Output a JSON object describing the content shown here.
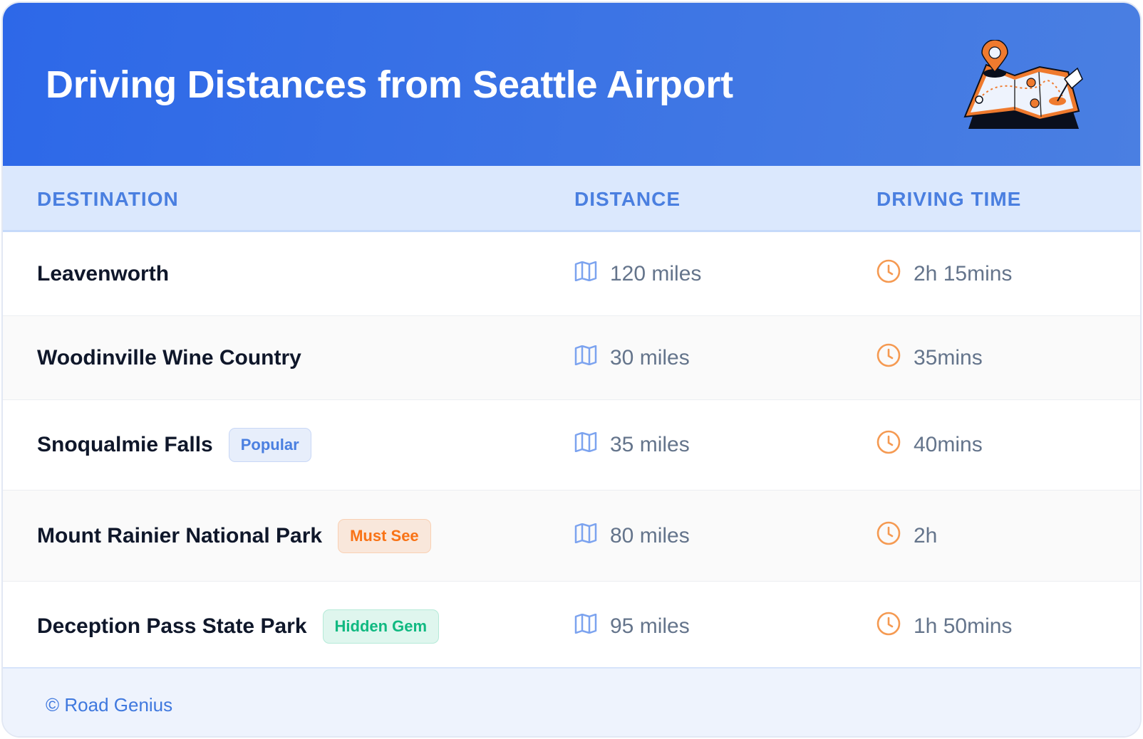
{
  "header": {
    "title": "Driving Distances from Seattle Airport",
    "illustration": "map-with-pins-illustration"
  },
  "columns": [
    "DESTINATION",
    "DISTANCE",
    "DRIVING TIME"
  ],
  "rows": [
    {
      "destination": "Leavenworth",
      "badge": "",
      "distance": "120 miles",
      "time": "2h 15mins"
    },
    {
      "destination": "Woodinville Wine Country",
      "badge": "",
      "distance": "30 miles",
      "time": "35mins"
    },
    {
      "destination": "Snoqualmie Falls",
      "badge": "Popular",
      "badge_color": "#4a7fe0",
      "distance": "35 miles",
      "time": "40mins"
    },
    {
      "destination": "Mount Rainier National Park",
      "badge": "Must See",
      "badge_color": "#f97316",
      "distance": "80 miles",
      "time": "2h"
    },
    {
      "destination": "Deception Pass State Park",
      "badge": "Hidden Gem",
      "badge_color": "#10b981",
      "distance": "95 miles",
      "time": "1h 50mins"
    }
  ],
  "icons": {
    "distance": "map-icon",
    "time": "clock-icon"
  },
  "footer": {
    "text": "© Road Genius"
  }
}
